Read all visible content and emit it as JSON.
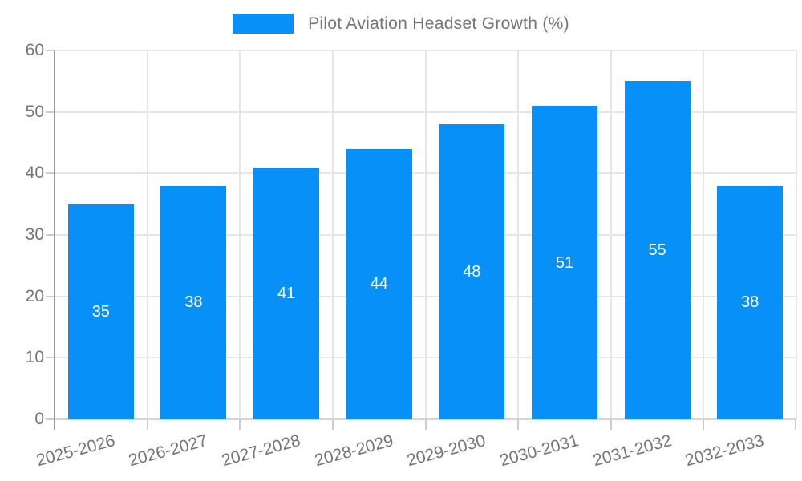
{
  "chart_data": {
    "type": "bar",
    "title": "Pilot Aviation Headset Growth (%)",
    "legend": {
      "position": "top",
      "label": "Pilot Aviation Headset Growth (%)"
    },
    "categories": [
      "2025-2026",
      "2026-2027",
      "2027-2028",
      "2028-2029",
      "2029-2030",
      "2030-2031",
      "2031-2032",
      "2032-2033"
    ],
    "values": [
      35,
      38,
      41,
      44,
      48,
      51,
      55,
      38
    ],
    "xlabel": "",
    "ylabel": "",
    "ylim": [
      0,
      60
    ],
    "yticks": [
      0,
      10,
      20,
      30,
      40,
      50,
      60
    ],
    "grid": true,
    "x_label_rotation_deg": -15,
    "colors": {
      "bar": "#0690f8",
      "value_label": "#ffffff",
      "axis_text": "#757575",
      "gridline": "#e6e6e6",
      "y_axis_line": "#999999",
      "x_axis_line": "#d6d6d6",
      "tick": "#cccccc"
    }
  }
}
